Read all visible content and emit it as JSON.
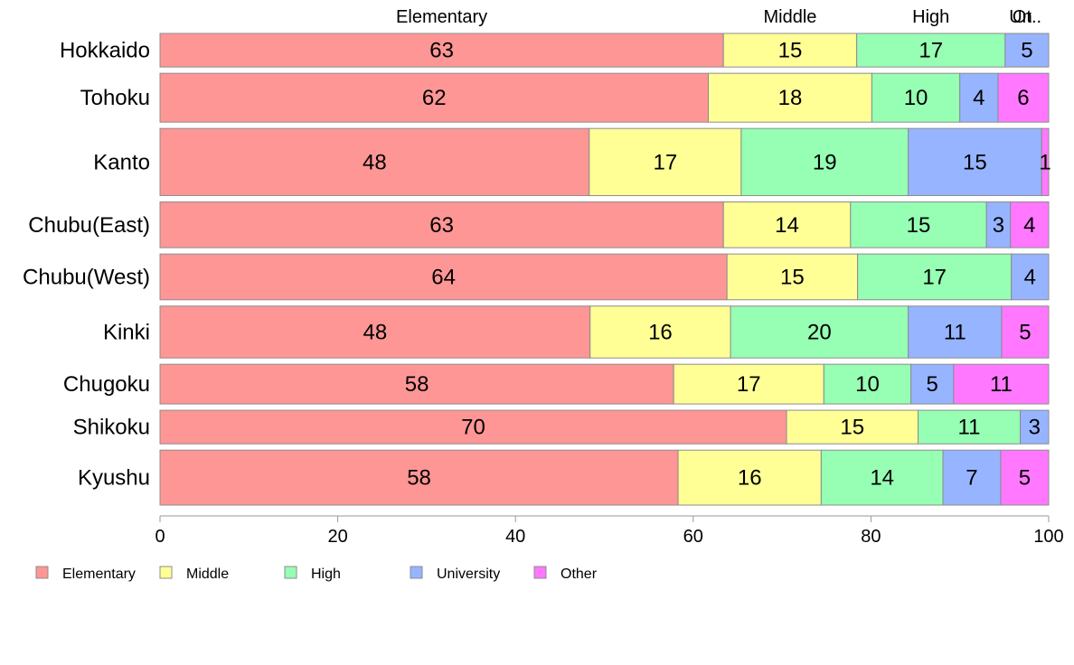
{
  "chart_data": {
    "type": "bar",
    "orientation": "horizontal",
    "stacked": true,
    "categories": [
      "Hokkaido",
      "Tohoku",
      "Kanto",
      "Chubu(East)",
      "Chubu(West)",
      "Kinki",
      "Chugoku",
      "Shikoku",
      "Kyushu"
    ],
    "series": [
      {
        "name": "Elementary",
        "color": "#FF9696",
        "values": [
          63.4,
          61.7,
          48.3,
          63.4,
          63.8,
          48.4,
          57.8,
          70.5,
          58.3
        ]
      },
      {
        "name": "Middle",
        "color": "#FFFF96",
        "values": [
          15.0,
          18.4,
          17.1,
          14.3,
          14.7,
          15.8,
          16.9,
          14.8,
          16.1
        ]
      },
      {
        "name": "High",
        "color": "#96FFB4",
        "values": [
          16.7,
          9.9,
          18.8,
          15.3,
          17.3,
          20.0,
          9.8,
          11.5,
          13.7
        ]
      },
      {
        "name": "University",
        "color": "#96B4FF",
        "values": [
          4.9,
          4.3,
          15.0,
          2.7,
          4.2,
          10.5,
          4.8,
          3.2,
          6.5
        ]
      },
      {
        "name": "Other",
        "color": "#FF78FF",
        "values": [
          0.0,
          5.7,
          0.8,
          4.3,
          0.0,
          5.3,
          10.7,
          0.0,
          5.4
        ]
      }
    ],
    "segment_labels": [
      [
        "63",
        "15",
        "17",
        "5",
        ""
      ],
      [
        "62",
        "18",
        "10",
        "4",
        "6"
      ],
      [
        "48",
        "17",
        "19",
        "15",
        "1"
      ],
      [
        "63",
        "14",
        "15",
        "3",
        "4"
      ],
      [
        "64",
        "15",
        "17",
        "4",
        ""
      ],
      [
        "48",
        "16",
        "20",
        "11",
        "5"
      ],
      [
        "58",
        "17",
        "10",
        "5",
        "11"
      ],
      [
        "70",
        "15",
        "11",
        "3",
        ""
      ],
      [
        "58",
        "16",
        "14",
        "7",
        "5"
      ]
    ],
    "row_weights": [
      11,
      16,
      22,
      15,
      15,
      17,
      13,
      11,
      18
    ],
    "top_labels": [
      "Elementary",
      "Middle",
      "High",
      "Un",
      "Ot.."
    ],
    "xlim": [
      0,
      100
    ],
    "xticks": [
      0,
      20,
      40,
      60,
      80,
      100
    ],
    "legend_position": "bottom-left",
    "legend": [
      "Elementary",
      "Middle",
      "High",
      "University",
      "Other"
    ],
    "xlabel": "",
    "ylabel": "",
    "title": ""
  }
}
